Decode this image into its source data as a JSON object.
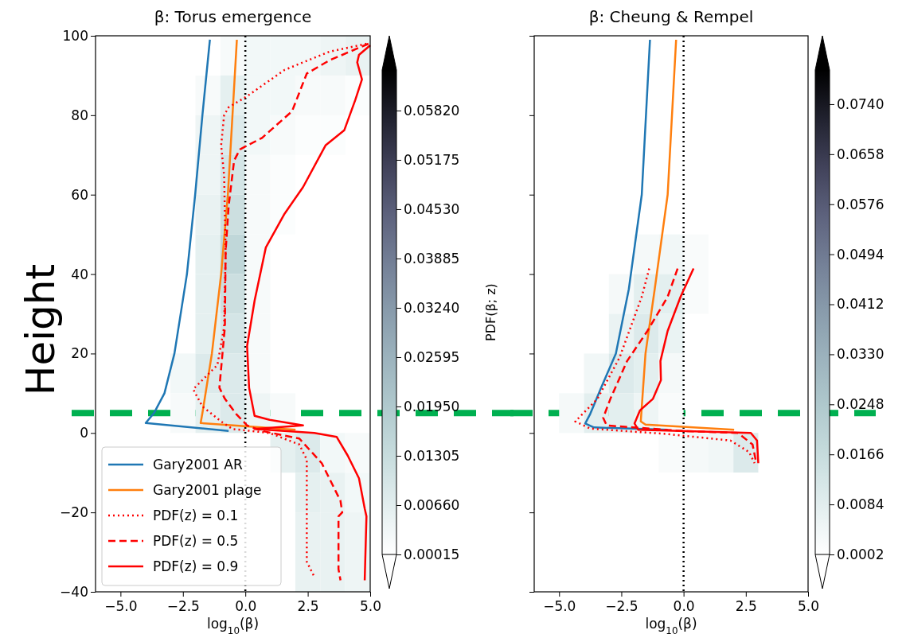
{
  "chart_data": [
    {
      "type": "heatmap",
      "title": "β: Torus emergence",
      "xlabel": "log$_{10}$(β)",
      "ylabel": "Height",
      "clabel": "PDF(β; z)",
      "xlim": [
        -6,
        5
      ],
      "xticks": [
        {
          "value": -5,
          "label": "−5.0"
        },
        {
          "value": -2.5,
          "label": "−2.5"
        },
        {
          "value": 0,
          "label": "0.0"
        },
        {
          "value": 2.5,
          "label": "2.5"
        },
        {
          "value": 5,
          "label": "5.0"
        }
      ],
      "ylim": [
        -40,
        100
      ],
      "yticks": [
        {
          "value": -40,
          "label": "−40"
        },
        {
          "value": -20,
          "label": "−20"
        },
        0,
        20,
        40,
        60,
        80,
        100
      ],
      "clim": [
        0.00015,
        0.0635
      ],
      "cticks": [
        {
          "value": 0.00015,
          "label": "0.00015"
        },
        {
          "value": 0.0066,
          "label": "0.00660"
        },
        {
          "value": 0.01305,
          "label": "0.01305"
        },
        {
          "value": 0.0195,
          "label": "0.01950"
        },
        {
          "value": 0.02595,
          "label": "0.02595"
        },
        {
          "value": 0.0324,
          "label": "0.03240"
        },
        {
          "value": 0.03885,
          "label": "0.03885"
        },
        {
          "value": 0.0453,
          "label": "0.04530"
        },
        {
          "value": 0.05175,
          "label": "0.05175"
        },
        {
          "value": 0.0582,
          "label": "0.05820"
        }
      ],
      "cells": [
        [
          null,
          null,
          null,
          null,
          null,
          0.002,
          0.003,
          0.003,
          0.003,
          0.004,
          0.005
        ],
        [
          null,
          null,
          null,
          null,
          0.002,
          0.006,
          0.003,
          0.003,
          0.002,
          0.002,
          0.001
        ],
        [
          null,
          null,
          null,
          null,
          0.004,
          0.008,
          0.003,
          0.002,
          0.001,
          0.001,
          null
        ],
        [
          null,
          null,
          null,
          null,
          0.004,
          0.01,
          0.002,
          0.001,
          null,
          null,
          null
        ],
        [
          null,
          null,
          null,
          null,
          0.005,
          0.012,
          0.002,
          0.001,
          null,
          null,
          null
        ],
        [
          null,
          null,
          null,
          null,
          0.006,
          0.015,
          0.002,
          null,
          null,
          null,
          null
        ],
        [
          null,
          null,
          null,
          null,
          0.006,
          0.012,
          0.002,
          null,
          null,
          null,
          null
        ],
        [
          null,
          null,
          null,
          null,
          0.006,
          0.01,
          0.002,
          null,
          null,
          null,
          null
        ],
        [
          null,
          null,
          null,
          0.003,
          0.008,
          0.008,
          0.002,
          null,
          null,
          null,
          null
        ],
        [
          null,
          null,
          null,
          0.002,
          0.006,
          0.008,
          0.004,
          0.002,
          null,
          null,
          null
        ],
        [
          null,
          null,
          null,
          null,
          null,
          null,
          null,
          0.006,
          0.008,
          0.003,
          0.002
        ],
        [
          null,
          null,
          null,
          null,
          null,
          null,
          null,
          null,
          0.006,
          0.005,
          0.003
        ],
        [
          null,
          null,
          null,
          null,
          null,
          null,
          null,
          null,
          0.005,
          0.005,
          0.004
        ],
        [
          null,
          null,
          null,
          null,
          null,
          null,
          null,
          null,
          0.005,
          0.005,
          0.004
        ]
      ],
      "series": [
        {
          "type": "line",
          "name": "Gary2001 AR",
          "color": "#1f77b4",
          "line_style": "solid",
          "x": [
            -1.42,
            -1.72,
            -2.01,
            -2.34,
            -2.84,
            -3.24,
            -3.66,
            -3.99,
            -0.67
          ],
          "values": [
            99,
            80,
            60,
            40,
            20,
            10,
            5,
            2.5,
            0.5
          ]
        },
        {
          "type": "line",
          "name": "Gary2001 plage",
          "color": "#ff7f0e",
          "line_style": "solid",
          "x": [
            -0.34,
            -0.7,
            -0.97,
            -1.34,
            -1.72,
            -1.79,
            2.01
          ],
          "values": [
            99,
            60,
            40,
            20,
            5,
            2.5,
            0.8
          ]
        },
        {
          "type": "line",
          "name": "PDF(z) = 0.1",
          "color": "#ff0000",
          "line_style": "dotted",
          "x": [
            4.85,
            3.36,
            1.57,
            0.07,
            -0.67,
            -0.85,
            -0.97,
            -0.85,
            -0.79,
            -0.85,
            -1.12,
            -2.09,
            -1.72,
            -0.97,
            -0.52,
            0.97,
            2.16,
            2.46,
            2.46,
            2.46,
            2.76
          ],
          "values": [
            98,
            96,
            91.4,
            84.8,
            82,
            80,
            72.4,
            64.8,
            45.7,
            26.7,
            17.1,
            11,
            6.7,
            2.9,
            1,
            0,
            -2.9,
            -6.7,
            -21,
            -32.4,
            -36.2
          ]
        },
        {
          "type": "line",
          "name": "PDF(z) = 0.5",
          "color": "#ff0000",
          "line_style": "dashed",
          "x": [
            4.93,
            3.36,
            2.46,
            1.87,
            0.67,
            -0.22,
            -0.45,
            -0.67,
            -0.79,
            -0.82,
            -1.04,
            -0.82,
            -0.37,
            0.07,
            0.67,
            2.16,
            3.06,
            3.81,
            3.88,
            3.73,
            3.73,
            3.81
          ],
          "values": [
            98,
            93.8,
            90.5,
            81,
            74.3,
            71.4,
            68.6,
            57.1,
            45.7,
            26.7,
            11.4,
            8.6,
            4.8,
            1.9,
            0.5,
            -1.4,
            -7.6,
            -17.1,
            -20,
            -21,
            -34.3,
            -37.1
          ]
        },
        {
          "type": "line",
          "name": "PDF(z) = 0.9",
          "color": "#ff0000",
          "line_style": "solid",
          "x": [
            5.0,
            4.55,
            4.48,
            4.67,
            4.4,
            3.96,
            3.21,
            2.31,
            1.57,
            0.82,
            0.37,
            0.07,
            0.15,
            0.37,
            0.97,
            2.31,
            0.37,
            2.76,
            3.66,
            4.1,
            4.55,
            4.78,
            4.85,
            4.78
          ],
          "values": [
            97.6,
            95.2,
            93.3,
            89,
            83.8,
            76.2,
            72.4,
            61.9,
            55.2,
            46.7,
            33.3,
            21.9,
            11.4,
            4.3,
            3.3,
            1.9,
            1,
            0,
            -1,
            -5.7,
            -11.4,
            -19,
            -21,
            -37.1
          ]
        }
      ],
      "ref_lines": [
        {
          "axis": "x",
          "value": 0,
          "color": "#000000",
          "line_style": "dotted"
        },
        {
          "axis": "y",
          "value": 5,
          "color": "#00b050",
          "line_style": "dashed"
        }
      ],
      "legend": "bottom left"
    },
    {
      "type": "heatmap",
      "title": "β: Cheung & Rempel",
      "xlabel": "log$_{10}$(β)",
      "xlim": [
        -6,
        5
      ],
      "xticks": [
        {
          "value": -5,
          "label": "−5.0"
        },
        {
          "value": -2.5,
          "label": "−2.5"
        },
        {
          "value": 0,
          "label": "0.0"
        },
        {
          "value": 2.5,
          "label": "2.5"
        },
        {
          "value": 5,
          "label": "5.0"
        }
      ],
      "ylim": [
        -40,
        100
      ],
      "yticks": [
        -40,
        -20,
        0,
        20,
        40,
        60,
        80,
        100
      ],
      "tick_labels": "x",
      "clim": [
        0.0002,
        0.0796
      ],
      "cticks": [
        {
          "value": 0.0002,
          "label": "0.0002"
        },
        {
          "value": 0.0084,
          "label": "0.0084"
        },
        {
          "value": 0.0166,
          "label": "0.0166"
        },
        {
          "value": 0.0248,
          "label": "0.0248"
        },
        {
          "value": 0.033,
          "label": "0.0330"
        },
        {
          "value": 0.0412,
          "label": "0.0412"
        },
        {
          "value": 0.0494,
          "label": "0.0494"
        },
        {
          "value": 0.0576,
          "label": "0.0576"
        },
        {
          "value": 0.0658,
          "label": "0.0658"
        },
        {
          "value": 0.074,
          "label": "0.0740"
        }
      ],
      "cells": [
        [
          0.0002,
          0.0002,
          0.0002,
          0.0002,
          0.0002,
          0.0002,
          0.0002,
          0.0002,
          0.0002,
          0.0002,
          0.0002
        ],
        [
          0.0002,
          0.0002,
          0.0002,
          0.0002,
          0.0002,
          0.0002,
          0.0002,
          0.0002,
          0.0002,
          0.0002,
          0.0002
        ],
        [
          0.0002,
          0.0002,
          0.0002,
          0.0002,
          0.0002,
          0.0002,
          0.0002,
          0.0002,
          0.0002,
          0.0002,
          0.0002
        ],
        [
          0.0002,
          0.0002,
          0.0002,
          0.0002,
          0.0002,
          0.0002,
          0.0002,
          0.0002,
          0.0002,
          0.0002,
          0.0002
        ],
        [
          0.0002,
          0.0002,
          0.0002,
          0.0002,
          0.0002,
          0.0002,
          0.0002,
          0.0002,
          0.0002,
          0.0002,
          0.0002
        ],
        [
          null,
          null,
          null,
          null,
          0.003,
          0.004,
          0.002,
          null,
          null,
          null,
          null
        ],
        [
          null,
          null,
          null,
          0.003,
          0.008,
          0.008,
          0.002,
          null,
          null,
          null,
          null
        ],
        [
          null,
          null,
          null,
          0.006,
          0.01,
          0.006,
          null,
          null,
          null,
          null,
          null
        ],
        [
          null,
          null,
          0.004,
          0.01,
          0.008,
          0.003,
          null,
          null,
          null,
          null,
          null
        ],
        [
          null,
          0.003,
          0.008,
          0.008,
          0.005,
          0.002,
          null,
          null,
          null,
          null,
          null
        ],
        [
          null,
          null,
          null,
          null,
          null,
          0.002,
          0.003,
          0.004,
          0.01,
          null,
          null
        ],
        [
          0.0002,
          0.0002,
          0.0002,
          0.0002,
          0.0002,
          0.0002,
          0.0002,
          0.0002,
          0.0002,
          0.0002,
          0.0002
        ],
        [
          0.0002,
          0.0002,
          0.0002,
          0.0002,
          0.0002,
          0.0002,
          0.0002,
          0.0002,
          0.0002,
          0.0002,
          0.0002
        ],
        [
          0.0002,
          0.0002,
          0.0002,
          0.0002,
          0.0002,
          0.0002,
          0.0002,
          0.0002,
          0.0002,
          0.0002,
          0.0002
        ]
      ],
      "series": [
        {
          "type": "line",
          "color": "#1f77b4",
          "line_style": "solid",
          "x": [
            -1.35,
            -1.68,
            -2.2,
            -2.72,
            -3.31,
            -3.75,
            -3.95,
            -3.6,
            -0.64
          ],
          "values": [
            99,
            60,
            36.2,
            20,
            11.4,
            4.8,
            2.4,
            1.4,
            0.8
          ]
        },
        {
          "type": "line",
          "color": "#ff7f0e",
          "line_style": "solid",
          "x": [
            -0.3,
            -0.64,
            -1.16,
            -1.53,
            -1.72,
            -1.53,
            2.03
          ],
          "values": [
            99,
            60,
            36.2,
            20,
            2.9,
            2.1,
            0.8
          ]
        },
        {
          "type": "line",
          "color": "#ff0000",
          "line_style": "dotted",
          "x": [
            -1.38,
            -1.68,
            -2.57,
            -3.46,
            -4.35,
            -3.75,
            -0.79,
            1.88,
            2.63,
            2.85
          ],
          "values": [
            41.4,
            34.3,
            19,
            8.6,
            2.9,
            1.1,
            -0.2,
            -1.9,
            -4.8,
            -7.6
          ]
        },
        {
          "type": "line",
          "color": "#ff0000",
          "line_style": "dashed",
          "x": [
            -0.24,
            -0.64,
            -1.45,
            -2.27,
            -2.94,
            -3.23,
            -3.09,
            -0.04,
            2.18,
            2.77,
            2.92
          ],
          "values": [
            41.4,
            34.3,
            25.7,
            18.1,
            8.6,
            3.8,
            1.9,
            0.5,
            0,
            -2.9,
            -7.6
          ]
        },
        {
          "type": "line",
          "color": "#ff0000",
          "line_style": "solid",
          "x": [
            0.4,
            -0.12,
            -0.64,
            -0.93,
            -0.91,
            -1.23,
            -1.75,
            -1.97,
            -1.82,
            2.7,
            2.95,
            3.0
          ],
          "values": [
            41.4,
            34.3,
            25.7,
            18.1,
            13.3,
            8.6,
            5.7,
            2.4,
            0.8,
            0,
            -1.9,
            -7.6
          ]
        }
      ],
      "ref_lines": [
        {
          "axis": "x",
          "value": 0,
          "color": "#000000",
          "line_style": "dotted"
        },
        {
          "axis": "y",
          "value": 5,
          "color": "#00b050",
          "line_style": "dashed"
        }
      ]
    }
  ]
}
